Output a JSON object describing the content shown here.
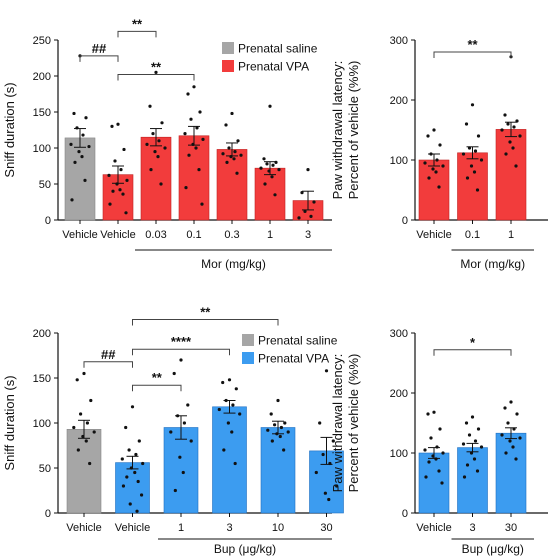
{
  "chart_data": [
    {
      "id": "panel-a",
      "type": "bar",
      "ylabel": "Sniff duration (s)",
      "ylim": [
        0,
        250
      ],
      "yticks": [
        0,
        50,
        100,
        150,
        200,
        250
      ],
      "categories": [
        "Vehicle",
        "Vehicle",
        "0.03",
        "0.1",
        "0.3",
        "1",
        "3"
      ],
      "values": [
        114,
        63,
        115,
        117,
        98,
        72,
        27
      ],
      "errors": [
        13,
        12,
        12,
        13,
        9,
        9,
        13
      ],
      "groups": [
        "saline",
        "vpa",
        "vpa",
        "vpa",
        "vpa",
        "vpa",
        "vpa"
      ],
      "points": [
        [
          228,
          148,
          142,
          128,
          118,
          105,
          102,
          95,
          88,
          80,
          55,
          28
        ],
        [
          133,
          130,
          98,
          82,
          70,
          62,
          55,
          50,
          42,
          40,
          36,
          22,
          10
        ],
        [
          205,
          158,
          135,
          120,
          110,
          105,
          100,
          95,
          88,
          70,
          50
        ],
        [
          185,
          175,
          150,
          140,
          128,
          120,
          112,
          105,
          100,
          90,
          70,
          45,
          22
        ],
        [
          148,
          132,
          110,
          100,
          95,
          92,
          90,
          88,
          85,
          80,
          65
        ],
        [
          158,
          85,
          80,
          78,
          76,
          72,
          70,
          68,
          60,
          50,
          35
        ],
        [
          70,
          38,
          25,
          12,
          5,
          3
        ]
      ],
      "xgroup_label": "Mor (mg/kg)",
      "xgroup_span": [
        2,
        6
      ],
      "legend": [
        {
          "label": "Prenatal saline",
          "color": "#a6a6a6"
        },
        {
          "label": "Prenatal VPA",
          "color": "#f23c3c"
        }
      ],
      "significance": [
        {
          "from": 0,
          "to": 1,
          "label": "##",
          "y": 228
        },
        {
          "from": 1,
          "to": 2,
          "label": "**",
          "y": 262
        },
        {
          "from": 1,
          "to": 3,
          "label": "**",
          "y": 202
        }
      ]
    },
    {
      "id": "panel-b",
      "type": "bar",
      "ylabel": "Paw withdrawal latency: Percent of vehicle (%%)",
      "ylim": [
        0,
        300
      ],
      "yticks": [
        0,
        100,
        200,
        300
      ],
      "categories": [
        "Vehicle",
        "0.1",
        "1"
      ],
      "values": [
        100,
        112,
        151
      ],
      "errors": [
        10,
        10,
        12
      ],
      "groups": [
        "vpa",
        "vpa",
        "vpa"
      ],
      "points": [
        [
          150,
          140,
          125,
          110,
          100,
          95,
          90,
          85,
          80,
          70,
          55
        ],
        [
          192,
          160,
          140,
          120,
          115,
          110,
          100,
          90,
          80,
          70,
          50
        ],
        [
          272,
          175,
          165,
          160,
          155,
          150,
          140,
          130,
          120,
          110,
          90
        ]
      ],
      "xgroup_label": "Mor (mg/kg)",
      "xgroup_span": [
        1,
        2
      ],
      "significance": [
        {
          "from": 0,
          "to": 2,
          "label": "**",
          "y": 280
        }
      ]
    },
    {
      "id": "panel-c",
      "type": "bar",
      "ylabel": "Sniff duration (s)",
      "ylim": [
        0,
        200
      ],
      "yticks": [
        0,
        50,
        100,
        150,
        200
      ],
      "categories": [
        "Vehicle",
        "Vehicle",
        "1",
        "3",
        "10",
        "30"
      ],
      "values": [
        93,
        56,
        95,
        118,
        95,
        69
      ],
      "errors": [
        10,
        7,
        13,
        7,
        7,
        15
      ],
      "groups": [
        "saline",
        "vpa",
        "vpa",
        "vpa",
        "vpa",
        "vpa"
      ],
      "points": [
        [
          155,
          148,
          125,
          110,
          100,
          95,
          90,
          85,
          80,
          70,
          55
        ],
        [
          118,
          95,
          80,
          70,
          65,
          60,
          55,
          50,
          45,
          40,
          35,
          30,
          20,
          10,
          2
        ],
        [
          170,
          155,
          120,
          108,
          100,
          90,
          80,
          62,
          45,
          25
        ],
        [
          148,
          145,
          138,
          125,
          120,
          115,
          110,
          100,
          90,
          70,
          55
        ],
        [
          125,
          110,
          100,
          98,
          95,
          92,
          90,
          88,
          85,
          80,
          70
        ],
        [
          158,
          100,
          80,
          65,
          55,
          45,
          30,
          22,
          15
        ]
      ],
      "xgroup_label": "Bup (μg/kg)",
      "xgroup_span": [
        2,
        5
      ],
      "legend": [
        {
          "label": "Prenatal saline",
          "color": "#a6a6a6"
        },
        {
          "label": "Prenatal VPA",
          "color": "#3c9cf0"
        }
      ],
      "significance": [
        {
          "from": 0,
          "to": 1,
          "label": "##",
          "y": 168
        },
        {
          "from": 1,
          "to": 2,
          "label": "**",
          "y": 142
        },
        {
          "from": 1,
          "to": 3,
          "label": "****",
          "y": 182
        },
        {
          "from": 1,
          "to": 4,
          "label": "**",
          "y": 215
        }
      ]
    },
    {
      "id": "panel-d",
      "type": "bar",
      "ylabel": "Paw withdrawal latency: Percent of vehicle (%%)",
      "ylim": [
        0,
        300
      ],
      "yticks": [
        0,
        100,
        200,
        300
      ],
      "categories": [
        "Vehicle",
        "3",
        "30"
      ],
      "values": [
        100,
        109,
        133
      ],
      "errors": [
        9,
        7,
        9
      ],
      "groups": [
        "vpa",
        "vpa",
        "vpa"
      ],
      "points": [
        [
          168,
          165,
          140,
          125,
          110,
          105,
          100,
          95,
          90,
          85,
          70,
          60,
          50
        ],
        [
          160,
          150,
          140,
          130,
          120,
          115,
          110,
          100,
          90,
          80,
          70,
          60
        ],
        [
          185,
          175,
          165,
          150,
          140,
          130,
          125,
          120,
          110,
          100,
          90
        ]
      ],
      "xgroup_label": "Bup (μg/kg)",
      "xgroup_span": [
        1,
        2
      ],
      "significance": [
        {
          "from": 0,
          "to": 2,
          "label": "*",
          "y": 272
        }
      ]
    }
  ]
}
